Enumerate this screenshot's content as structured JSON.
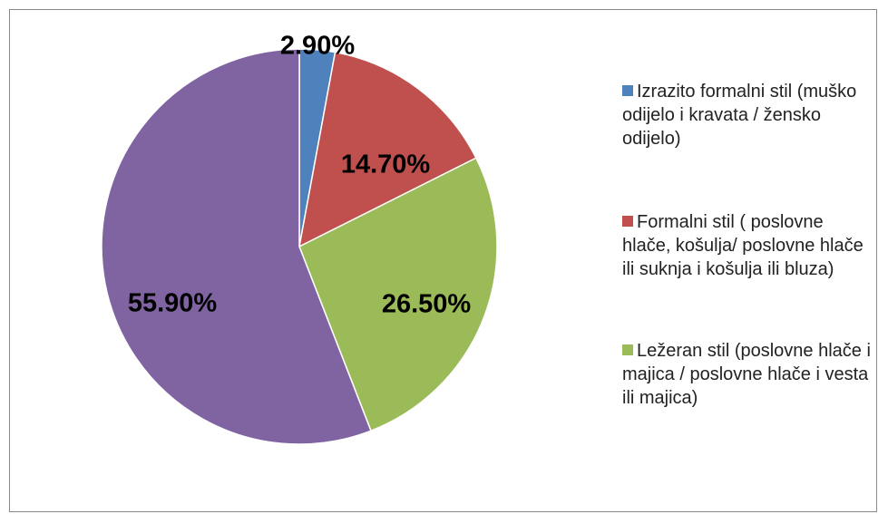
{
  "chart_data": {
    "type": "pie",
    "categories": [
      "Izrazito formalni stil (muško odijelo i kravata / žensko odijelo)",
      "Formalni stil ( poslovne hlače, košulja/ poslovne hlače ili suknja i košulja ili bluza)",
      "Ležeran stil (poslovne hlače i majica / poslovne hlače i vesta ili majica)",
      null
    ],
    "values": [
      2.9,
      14.7,
      26.5,
      55.9
    ],
    "value_labels": [
      "2.90%",
      "14.70%",
      "26.50%",
      "55.90%"
    ],
    "colors": [
      "#4f81bd",
      "#c0504d",
      "#9bbb59",
      "#8064a2"
    ]
  }
}
